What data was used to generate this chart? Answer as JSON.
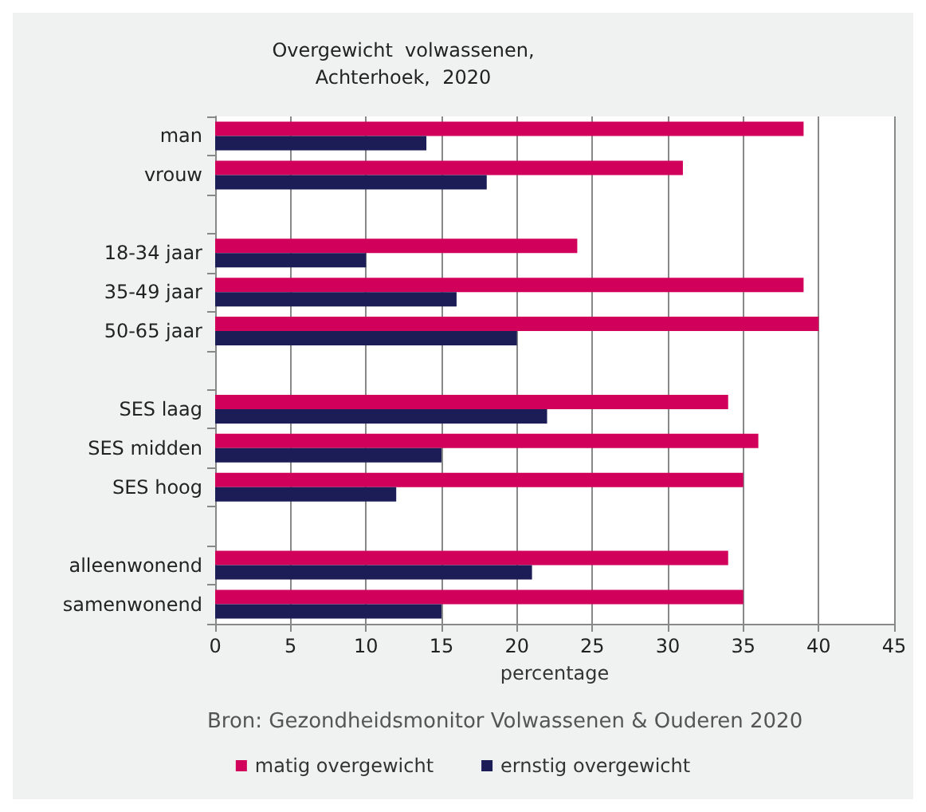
{
  "chart_data": {
    "type": "bar",
    "orientation": "horizontal",
    "title": "Overgewicht  volwassenen,\nAchterhoek,  2020",
    "xlabel": "percentage",
    "categories": [
      "man",
      "vrouw",
      null,
      "18-34 jaar",
      "35-49 jaar",
      "50-65 jaar",
      null,
      "SES laag",
      "SES midden",
      "SES hoog",
      null,
      "alleenwonend",
      "samenwonend"
    ],
    "series": [
      {
        "name": "matig overgewicht",
        "color": "#d1005a",
        "values": [
          39,
          31,
          null,
          24,
          39,
          40,
          null,
          34,
          36,
          35,
          null,
          34,
          35
        ]
      },
      {
        "name": "ernstig overgewicht",
        "color": "#1c1d57",
        "values": [
          14,
          18,
          null,
          10,
          16,
          20,
          null,
          22,
          15,
          12,
          null,
          21,
          15
        ]
      }
    ],
    "xlim": [
      0,
      45
    ],
    "xticks": [
      0,
      5,
      10,
      15,
      20,
      25,
      30,
      35,
      40,
      45
    ],
    "grid": "x",
    "legend": "bottom",
    "annotations": [
      "Bron: Gezondheidsmonitor Volwassenen & Ouderen 2020"
    ]
  }
}
